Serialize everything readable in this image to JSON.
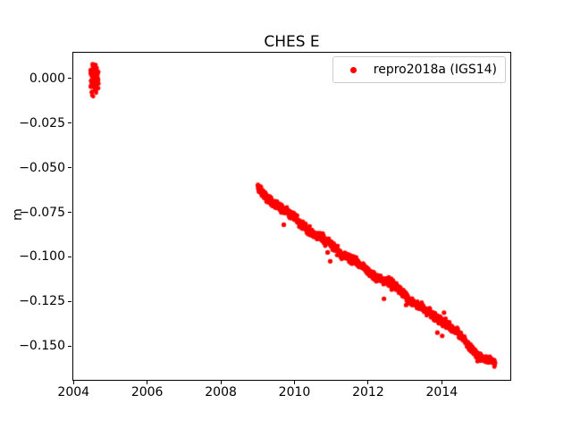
{
  "figure": {
    "title": "CHES E",
    "background_color": "#ffffff"
  },
  "chart_data": {
    "type": "scatter",
    "title": "CHES E",
    "xlabel": "",
    "ylabel": "m",
    "grid": false,
    "xlim": [
      2003.97,
      2015.86
    ],
    "ylim": [
      -0.169,
      0.015
    ],
    "xticks": {
      "values": [
        2004,
        2006,
        2008,
        2010,
        2012,
        2014
      ],
      "labels": [
        "2004",
        "2006",
        "2008",
        "2010",
        "2012",
        "2014"
      ]
    },
    "yticks": {
      "values": [
        0.0,
        -0.025,
        -0.05,
        -0.075,
        -0.1,
        -0.125,
        -0.15
      ],
      "labels": [
        "0.000",
        "−0.025",
        "−0.050",
        "−0.075",
        "−0.100",
        "−0.125",
        "−0.150"
      ]
    },
    "legend": {
      "position": "upper right",
      "entries": [
        {
          "label": "repro2018a (IGS14)",
          "color": "#ff0000",
          "marker": "circle"
        }
      ]
    },
    "series": [
      {
        "name": "repro2018a (IGS14)",
        "color": "#ff0000",
        "marker": "o",
        "marker_px": 2.4,
        "segments": [
          {
            "desc": "2004 cluster near zero",
            "x_start": 2004.46,
            "x_end": 2004.68,
            "n": 75,
            "sigma": 0.0045,
            "clip": [
              -0.0105,
              0.008
            ],
            "knots": [
              [
                2004.46,
                -0.002
              ],
              [
                2004.68,
                0.0005
              ]
            ],
            "wobble": []
          },
          {
            "desc": "2009-2015 descending trend band",
            "x_start": 2009.0,
            "x_end": 2015.45,
            "n": 1400,
            "sigma": 0.0011,
            "clip": [
              -0.168,
              0.014
            ],
            "knots": [
              [
                2009.0,
                -0.0615
              ],
              [
                2009.3,
                -0.0675
              ],
              [
                2010.5,
                -0.0862
              ],
              [
                2011.7,
                -0.104
              ],
              [
                2012.9,
                -0.119
              ],
              [
                2013.4,
                -0.1285
              ],
              [
                2014.1,
                -0.1368
              ],
              [
                2015.1,
                -0.157
              ],
              [
                2015.45,
                -0.1595
              ]
            ],
            "wobble": [
              [
                0.0008,
                0.9
              ],
              [
                0.0004,
                0.23
              ]
            ]
          }
        ],
        "outliers": [
          [
            2009.71,
            -0.082
          ],
          [
            2010.9,
            -0.0975
          ],
          [
            2010.97,
            -0.1025
          ],
          [
            2012.43,
            -0.1235
          ],
          [
            2013.03,
            -0.127
          ],
          [
            2013.88,
            -0.1425
          ],
          [
            2014.01,
            -0.1443
          ],
          [
            2014.06,
            -0.1313
          ],
          [
            2014.97,
            -0.1585
          ]
        ]
      }
    ]
  }
}
